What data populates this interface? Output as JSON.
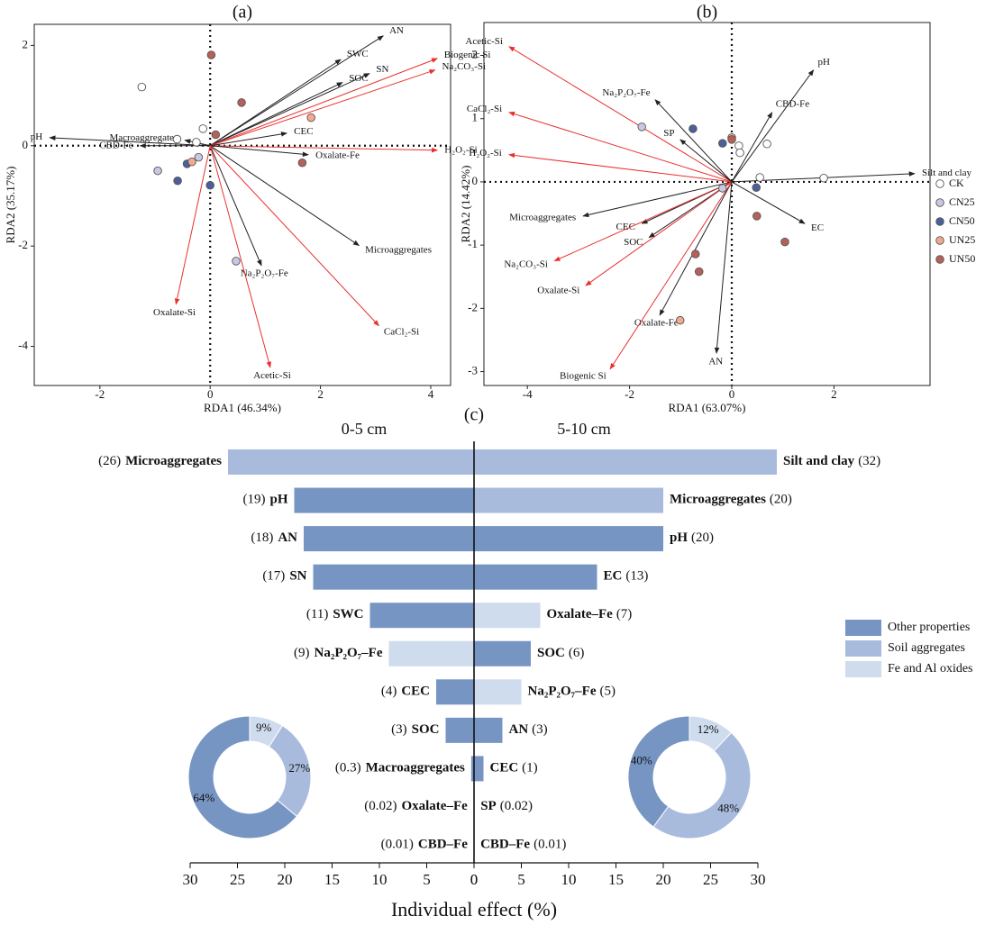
{
  "chart_data": [
    {
      "type": "biplot",
      "title": "(a)",
      "xlabel": "RDA1 (46.34%)",
      "ylabel": "RDA2 (35.17%)",
      "xlim": [
        -3.19,
        4.36
      ],
      "ylim": [
        -4.78,
        2.42
      ],
      "xticks": [
        -2,
        0,
        2,
        4
      ],
      "yticks": [
        -4,
        -2,
        0,
        2
      ],
      "vectors": [
        {
          "name": "AN",
          "x": 3.14,
          "y": 2.19,
          "color": "#222222"
        },
        {
          "name": "SWC",
          "x": 2.37,
          "y": 1.72,
          "color": "#222222"
        },
        {
          "name": "SOC",
          "x": 2.4,
          "y": 1.26,
          "color": "#222222"
        },
        {
          "name": "SN",
          "x": 2.89,
          "y": 1.44,
          "color": "#222222"
        },
        {
          "name": "Biogenic Si",
          "x": 4.12,
          "y": 1.74,
          "color": "#e8312f"
        },
        {
          "name": "Na₂CO₃-Si",
          "x": 4.08,
          "y": 1.51,
          "color": "#e8312f"
        },
        {
          "name": "CEC",
          "x": 1.39,
          "y": 0.25,
          "color": "#222222"
        },
        {
          "name": "H₂O₂-Si",
          "x": 4.12,
          "y": -0.09,
          "color": "#e8312f"
        },
        {
          "name": "Oxalate-Fe",
          "x": 1.78,
          "y": -0.18,
          "color": "#222222"
        },
        {
          "name": "pH",
          "x": -2.91,
          "y": 0.16,
          "color": "#222222"
        },
        {
          "name": "Macroaggregates",
          "x": -0.46,
          "y": 0.11,
          "color": "#222222"
        },
        {
          "name": "CBD-Fe",
          "x": -1.27,
          "y": 0.0,
          "color": "#222222"
        },
        {
          "name": "Microaggregates",
          "x": 2.7,
          "y": -1.99,
          "color": "#222222"
        },
        {
          "name": "Na₂P₂O₇-Fe",
          "x": 0.93,
          "y": -2.39,
          "color": "#222222"
        },
        {
          "name": "Oxalate-Si",
          "x": -0.62,
          "y": -3.16,
          "color": "#e8312f"
        },
        {
          "name": "CaCl₂-Si",
          "x": 3.06,
          "y": -3.59,
          "color": "#e8312f"
        },
        {
          "name": "Acetic-Si",
          "x": 1.09,
          "y": -4.42,
          "color": "#e8312f"
        }
      ],
      "series": [
        {
          "color": "#ffffff",
          "x": [
            -1.24,
            -0.13,
            -0.25,
            -0.6
          ],
          "y": [
            1.17,
            0.34,
            0.07,
            0.13
          ]
        },
        {
          "color": "#c9c8e2",
          "x": [
            -0.95,
            -0.21,
            0.47
          ],
          "y": [
            -0.5,
            -0.23,
            -2.3
          ]
        },
        {
          "color": "#4b5f9a",
          "x": [
            -0.59,
            -0.42,
            0.0
          ],
          "y": [
            -0.7,
            -0.36,
            -0.79
          ]
        },
        {
          "color": "#f2a98f",
          "x": [
            1.83,
            -0.33
          ],
          "y": [
            0.56,
            -0.32
          ]
        },
        {
          "color": "#b6605a",
          "x": [
            0.02,
            0.57,
            0.1,
            1.67
          ],
          "y": [
            1.81,
            0.86,
            0.22,
            -0.34
          ]
        }
      ]
    },
    {
      "type": "biplot",
      "title": "(b)",
      "xlabel": "RDA1 (63.07%)",
      "ylabel": "RDA2 (14.42%)",
      "xlim": [
        -4.85,
        3.88
      ],
      "ylim": [
        -3.22,
        2.52
      ],
      "xticks": [
        -4,
        -2,
        0,
        2
      ],
      "yticks": [
        -3,
        -2,
        -1,
        0,
        1,
        2
      ],
      "legend": "right",
      "vectors": [
        {
          "name": "Acetic-Si",
          "x": -4.36,
          "y": 2.14,
          "color": "#e8312f"
        },
        {
          "name": "CaCl₂-Si",
          "x": -4.36,
          "y": 1.1,
          "color": "#e8312f"
        },
        {
          "name": "H₂O₂-Si",
          "x": -4.36,
          "y": 0.43,
          "color": "#e8312f"
        },
        {
          "name": "Na₂P₂O₇-Fe",
          "x": -1.5,
          "y": 1.3,
          "color": "#222222"
        },
        {
          "name": "SP",
          "x": -1.01,
          "y": 0.67,
          "color": "#222222"
        },
        {
          "name": "pH",
          "x": 1.6,
          "y": 1.77,
          "color": "#222222"
        },
        {
          "name": "CBD-Fe",
          "x": 0.79,
          "y": 1.1,
          "color": "#222222"
        },
        {
          "name": "Silt and clay",
          "x": 3.58,
          "y": 0.13,
          "color": "#222222"
        },
        {
          "name": "EC",
          "x": 1.43,
          "y": -0.66,
          "color": "#222222"
        },
        {
          "name": "Microaggregates",
          "x": -2.91,
          "y": -0.54,
          "color": "#222222"
        },
        {
          "name": "CEC",
          "x": -1.76,
          "y": -0.66,
          "color": "#222222"
        },
        {
          "name": "SOC",
          "x": -1.62,
          "y": -0.88,
          "color": "#222222"
        },
        {
          "name": "Na₂CO₃-Si",
          "x": -3.47,
          "y": -1.25,
          "color": "#e8312f"
        },
        {
          "name": "Oxalate-Si",
          "x": -2.86,
          "y": -1.64,
          "color": "#e8312f"
        },
        {
          "name": "Oxalate-Fe",
          "x": -1.41,
          "y": -2.11,
          "color": "#222222"
        },
        {
          "name": "Biogenic Si",
          "x": -2.38,
          "y": -2.96,
          "color": "#e8312f"
        },
        {
          "name": "AN",
          "x": -0.3,
          "y": -2.71,
          "color": "#222222"
        }
      ],
      "series": [
        {
          "name": "CK",
          "color": "#ffffff",
          "x": [
            0.69,
            0.14,
            0.16,
            0.55,
            1.8
          ],
          "y": [
            0.6,
            0.57,
            0.46,
            0.07,
            0.06
          ]
        },
        {
          "name": "CN25",
          "color": "#c9c8e2",
          "x": [
            -1.76,
            -0.18
          ],
          "y": [
            0.87,
            -0.1
          ]
        },
        {
          "name": "CN50",
          "color": "#4b5f9a",
          "x": [
            -0.76,
            -0.18,
            0.48
          ],
          "y": [
            0.84,
            0.61,
            -0.09
          ]
        },
        {
          "name": "UN25",
          "color": "#f2a98f",
          "x": [
            0.0,
            -1.01
          ],
          "y": [
            0.7,
            -2.19
          ]
        },
        {
          "name": "UN50",
          "color": "#b6605a",
          "x": [
            0.0,
            0.49,
            1.04,
            -0.71,
            -0.64
          ],
          "y": [
            0.67,
            -0.54,
            -0.95,
            -1.14,
            -1.42
          ]
        }
      ]
    },
    {
      "type": "diverging_bar",
      "title": "(c)",
      "xlabel": "Individual effect (%)",
      "xlim": [
        0,
        30
      ],
      "xticks": [
        0,
        5,
        10,
        15,
        20,
        25,
        30
      ],
      "groups": [
        {
          "name": "Other properties",
          "color": "#7795c3"
        },
        {
          "name": "Soil aggregates",
          "color": "#a9bbdd"
        },
        {
          "name": "Fe and Al oxides",
          "color": "#cedcee"
        }
      ],
      "sides": [
        {
          "subtitle": "0-5 cm",
          "categories": [
            "Microaggregates",
            "pH",
            "AN",
            "SN",
            "SWC",
            "Na₂P₂O₇–Fe",
            "CEC",
            "SOC",
            "Macroaggregates",
            "Oxalate–Fe",
            "CBD–Fe"
          ],
          "values": [
            26,
            19,
            18,
            17,
            11,
            9,
            4,
            3,
            0.3,
            0.02,
            0.01
          ],
          "value_labels": [
            "(26)",
            "(19)",
            "(18)",
            "(17)",
            "(11)",
            "(9)",
            "(4)",
            "(3)",
            "(0.3)",
            "(0.02)",
            "(0.01)"
          ],
          "group": [
            1,
            0,
            0,
            0,
            0,
            2,
            0,
            0,
            0,
            2,
            2
          ]
        },
        {
          "subtitle": "5-10 cm",
          "categories": [
            "Silt and clay",
            "Microaggregates",
            "pH",
            "EC",
            "Oxalate–Fe",
            "SOC",
            "Na₂P₂O₇–Fe",
            "AN",
            "CEC",
            "SP",
            "CBD–Fe"
          ],
          "values": [
            32,
            20,
            20,
            13,
            7,
            6,
            5,
            3,
            1,
            0.02,
            0.01
          ],
          "value_labels": [
            "(32)",
            "(20)",
            "(20)",
            "(13)",
            "(7)",
            "(6)",
            "(5)",
            "(3)",
            "(1)",
            "(0.02)",
            "(0.01)"
          ],
          "group": [
            1,
            1,
            0,
            0,
            2,
            0,
            2,
            0,
            0,
            0,
            2
          ]
        }
      ]
    },
    {
      "type": "donut",
      "values": [
        9,
        27,
        64
      ],
      "value_labels": [
        "9%",
        "27%",
        "64%"
      ],
      "colors": [
        "#cedcee",
        "#a9bbdd",
        "#7795c3"
      ]
    },
    {
      "type": "donut",
      "values": [
        12,
        48,
        40
      ],
      "value_labels": [
        "12%",
        "48%",
        "40%"
      ],
      "colors": [
        "#cedcee",
        "#a9bbdd",
        "#7795c3"
      ]
    }
  ]
}
